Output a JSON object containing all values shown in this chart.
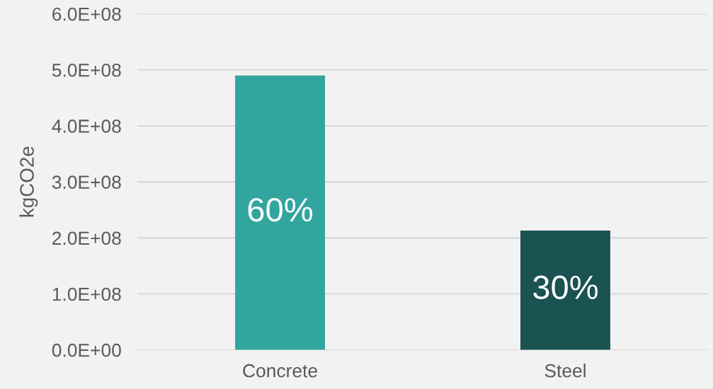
{
  "chart_data": {
    "type": "bar",
    "ylabel": "kgCO2e",
    "categories": [
      "Concrete",
      "Steel"
    ],
    "values": [
      490000000,
      213000000
    ],
    "colors": [
      "#33a59f",
      "#1b5252"
    ],
    "annotations": [
      "60%",
      "30%"
    ],
    "ylim": [
      0,
      600000000
    ],
    "yticks": [
      {
        "value": 0,
        "label": "0.0E+00"
      },
      {
        "value": 100000000,
        "label": "1.0E+08"
      },
      {
        "value": 200000000,
        "label": "2.0E+08"
      },
      {
        "value": 300000000,
        "label": "3.0E+08"
      },
      {
        "value": 400000000,
        "label": "4.0E+08"
      },
      {
        "value": 500000000,
        "label": "5.0E+08"
      },
      {
        "value": 600000000,
        "label": "6.0E+08"
      }
    ],
    "grid": "y"
  }
}
